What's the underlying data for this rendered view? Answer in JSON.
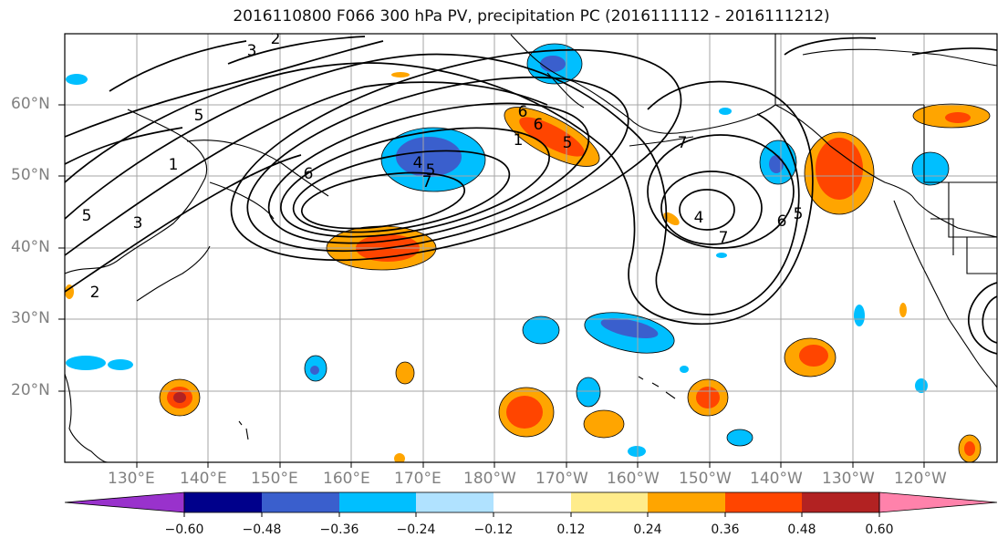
{
  "title": "2016110800 F066 300 hPa PV, precipitation PC (2016111112 - 2016111212)",
  "map": {
    "lat_labels": [
      "60°N",
      "50°N",
      "40°N",
      "30°N",
      "20°N"
    ],
    "lon_labels": [
      "130°E",
      "140°E",
      "150°E",
      "160°E",
      "170°E",
      "180°W",
      "170°W",
      "160°W",
      "150°W",
      "140°W",
      "130°W",
      "120°W"
    ],
    "contour_labels": [
      "3",
      "2",
      "5",
      "1",
      "5",
      "6",
      "3",
      "6",
      "4",
      "5",
      "7",
      "6",
      "5",
      "7",
      "6",
      "4",
      "7",
      "2",
      "1",
      "5"
    ]
  },
  "colorbar": {
    "ticks": [
      "−0.60",
      "−0.48",
      "−0.36",
      "−0.24",
      "−0.12",
      "0.12",
      "0.24",
      "0.36",
      "0.48",
      "0.60"
    ],
    "colors": [
      "#9932cc",
      "#00008b",
      "#3a5fcd",
      "#00bfff",
      "#b0e2ff",
      "#ffffff",
      "#ffec8b",
      "#ffa500",
      "#ff4500",
      "#b22222",
      "#ff82ab"
    ]
  }
}
